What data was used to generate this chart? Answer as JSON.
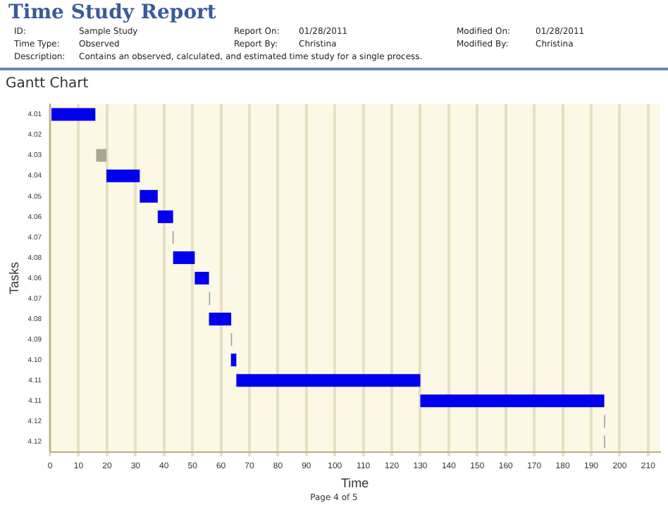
{
  "chart_data": {
    "type": "bar",
    "orientation": "horizontal",
    "title": "Time Study Report",
    "subtitle": "Gantt Chart",
    "xlabel": "Time",
    "ylabel": "Tasks",
    "annotations": [
      "ID:",
      "Sample Study",
      "Report On:",
      "01/28/2011",
      "Modified On:",
      "01/28/2011",
      "Time Type:",
      "Observed",
      "Report By:",
      "Christina",
      "Modified By:",
      "Christina",
      "Description:",
      "Contains an observed, calculated, and estimated time study for a single process.",
      "Page 4 of 5"
    ],
    "categories": [
      "4.01",
      "4.02",
      "4.03",
      "4.04",
      "4.05",
      "4.06",
      "4.07",
      "4.08",
      "4.06",
      "4.07",
      "4.08",
      "4.09",
      "4.10",
      "4.11",
      "4.11",
      "4.12",
      "4.12"
    ],
    "base": [
      0,
      null,
      16.2,
      19.8,
      31.5,
      37.8,
      43,
      43.2,
      50.8,
      55.8,
      55.8,
      63.5,
      63.5,
      65.4,
      130,
      194.5,
      194.5
    ],
    "values": [
      15.9,
      null,
      3.6,
      11.7,
      6.3,
      5.4,
      0.4,
      7.6,
      5,
      0.4,
      7.8,
      0.4,
      1.9,
      64.6,
      64.6,
      0.4,
      0.4
    ],
    "colors": [
      "#0000ee",
      "#0000ee",
      "#aaa68e",
      "#0000ee",
      "#0000ee",
      "#0000ee",
      "#9c9cb0",
      "#0000ee",
      "#0000ee",
      "#9c9cb0",
      "#0000ee",
      "#9c9cb0",
      "#0000ee",
      "#0000ee",
      "#0000ee",
      "#9c9cb0",
      "#9c9cb0"
    ],
    "xlim": [
      0,
      214
    ],
    "xticks": [
      0,
      10,
      20,
      30,
      40,
      50,
      60,
      70,
      80,
      90,
      100,
      110,
      120,
      130,
      140,
      150,
      160,
      170,
      180,
      190,
      200,
      210
    ],
    "grid": "x"
  }
}
